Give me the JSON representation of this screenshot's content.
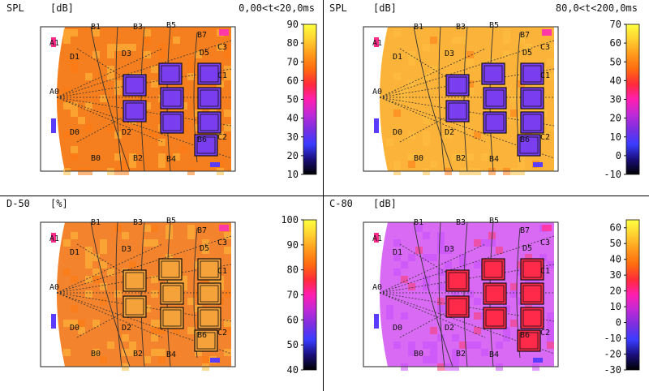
{
  "colors": {
    "scale_stops": [
      "#000000",
      "#1a0e7a",
      "#3a3cff",
      "#7a2fe0",
      "#c02ad8",
      "#ff1fb0",
      "#ff2a3a",
      "#ff6a10",
      "#ff9a1c",
      "#ffd030",
      "#ffff40"
    ],
    "panel_base": [
      "#f57f1e",
      "#fbb33a",
      "#f3832c",
      "#d86af4"
    ],
    "cell_hot": "#ff9c2b",
    "line": "#202020"
  },
  "panels": [
    {
      "id": "spl-early",
      "title_left": "SPL",
      "unit": "[dB]",
      "title_right": "0,00<t<20,0ms",
      "scale_ticks": [
        90,
        80,
        70,
        60,
        50,
        40,
        30,
        20,
        10
      ],
      "scale_min": 10,
      "scale_max": 90,
      "field_value": 74
    },
    {
      "id": "spl-late",
      "title_left": "SPL",
      "unit": "[dB]",
      "title_right": "80,0<t<200,0ms",
      "scale_ticks": [
        70,
        60,
        50,
        40,
        30,
        20,
        10,
        0,
        -10
      ],
      "scale_min": -10,
      "scale_max": 70,
      "field_value": 58
    },
    {
      "id": "d50",
      "title_left": "D-50",
      "unit": "[%]",
      "title_right": "",
      "scale_ticks": [
        100,
        90,
        80,
        70,
        60,
        50,
        40
      ],
      "scale_min": 40,
      "scale_max": 100,
      "field_value": 83
    },
    {
      "id": "c80",
      "title_left": "C-80",
      "unit": "[dB]",
      "title_right": "",
      "scale_ticks": [
        60,
        50,
        40,
        30,
        20,
        10,
        0,
        -10,
        -20,
        -30
      ],
      "scale_min": -30,
      "scale_max": 65,
      "field_value": 15
    }
  ],
  "plan_labels": [
    "B1",
    "B3",
    "B5",
    "B7",
    "D1",
    "D3",
    "D5",
    "C3",
    "A1",
    "A0",
    "D0",
    "D2",
    "C2",
    "B0",
    "B2",
    "B4",
    "B6",
    "C1"
  ]
}
